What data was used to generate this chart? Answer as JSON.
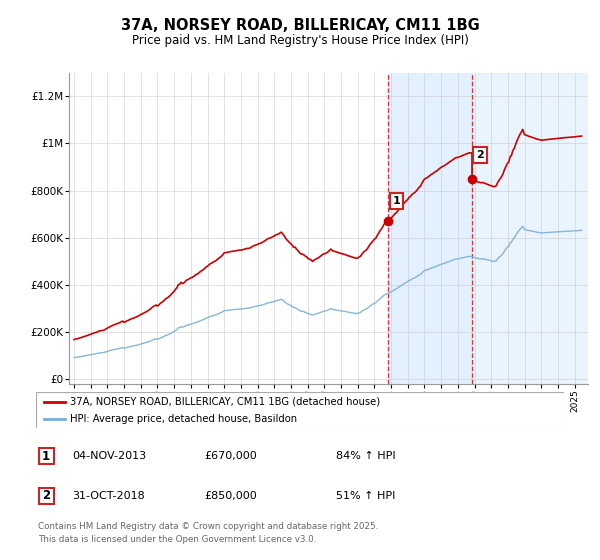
{
  "title_line1": "37A, NORSEY ROAD, BILLERICAY, CM11 1BG",
  "title_line2": "Price paid vs. HM Land Registry's House Price Index (HPI)",
  "background_color": "#ffffff",
  "plot_bg_color": "#ffffff",
  "grid_color": "#cccccc",
  "red_line_color": "#cc0000",
  "blue_line_color": "#7aaed6",
  "shade_color": "#ddeeff",
  "transaction1_year": 2013.83,
  "transaction1_price": 670000,
  "transaction2_year": 2018.83,
  "transaction2_price": 850000,
  "yticks": [
    0,
    200000,
    400000,
    600000,
    800000,
    1000000,
    1200000
  ],
  "ytick_labels": [
    "£0",
    "£200K",
    "£400K",
    "£600K",
    "£800K",
    "£1M",
    "£1.2M"
  ],
  "xmin": 1994.7,
  "xmax": 2025.8,
  "ymin": -20000,
  "ymax": 1300000,
  "legend_label_red": "37A, NORSEY ROAD, BILLERICAY, CM11 1BG (detached house)",
  "legend_label_blue": "HPI: Average price, detached house, Basildon",
  "table_row1": [
    "1",
    "04-NOV-2013",
    "£670,000",
    "84% ↑ HPI"
  ],
  "table_row2": [
    "2",
    "31-OCT-2018",
    "£850,000",
    "51% ↑ HPI"
  ],
  "footer": "Contains HM Land Registry data © Crown copyright and database right 2025.\nThis data is licensed under the Open Government Licence v3.0."
}
